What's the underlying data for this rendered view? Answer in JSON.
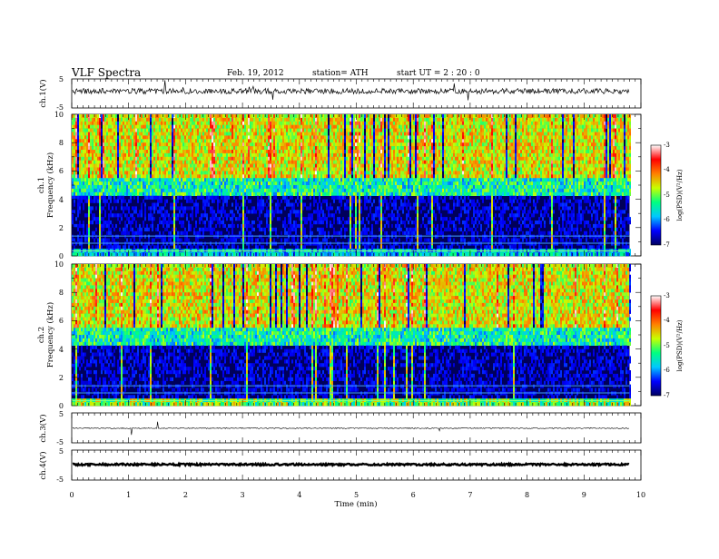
{
  "header": {
    "title": "VLF  Spectra",
    "date": "Feb. 19, 2012",
    "station": "station= ATH",
    "start": "start  UT  =   2  : 20 : 0"
  },
  "chart_data": {
    "type": "heatmap",
    "xlabel": "Time  (min)",
    "xlim": [
      0,
      10
    ],
    "x_ticks": [
      0,
      1,
      2,
      3,
      4,
      5,
      6,
      7,
      8,
      9,
      10
    ],
    "data_end_min": 9.8,
    "panels": [
      {
        "id": "ch1-waveform",
        "kind": "line",
        "ylabel": "ch.1(V)",
        "ylim": [
          -5,
          5
        ],
        "y_ticks": [
          "5",
          "-5"
        ]
      },
      {
        "id": "ch1-spectrogram",
        "kind": "heatmap",
        "ylabel_top": "ch.1",
        "ylabel": "Frequency  (kHz)",
        "ylim": [
          0,
          10
        ],
        "y_ticks": [
          "0",
          "2",
          "4",
          "6",
          "8",
          "10"
        ]
      },
      {
        "id": "ch2-spectrogram",
        "kind": "heatmap",
        "ylabel_top": "ch.2",
        "ylabel": "Frequency  (kHz)",
        "ylim": [
          0,
          10
        ],
        "y_ticks": [
          "0",
          "2",
          "4",
          "6",
          "8",
          "10"
        ]
      },
      {
        "id": "ch3-waveform",
        "kind": "line",
        "ylabel": "ch.3(V)",
        "ylim": [
          -5,
          5
        ],
        "y_ticks": [
          "5",
          "-5"
        ]
      },
      {
        "id": "ch4-waveform",
        "kind": "line",
        "ylabel": "ch.4(V)",
        "ylim": [
          -5,
          5
        ],
        "y_ticks": [
          "5",
          "-5"
        ]
      }
    ],
    "colorbar": {
      "label": "log(PSD)(V²/Hz)",
      "range": [
        -7,
        -3
      ],
      "ticks": [
        "-3",
        "-4",
        "-5",
        "-6",
        "-7"
      ],
      "colors": [
        "#000060",
        "#0000ff",
        "#00c8ff",
        "#00ff80",
        "#c8ff00",
        "#ff8000",
        "#ff0000",
        "#ffffff"
      ]
    }
  }
}
